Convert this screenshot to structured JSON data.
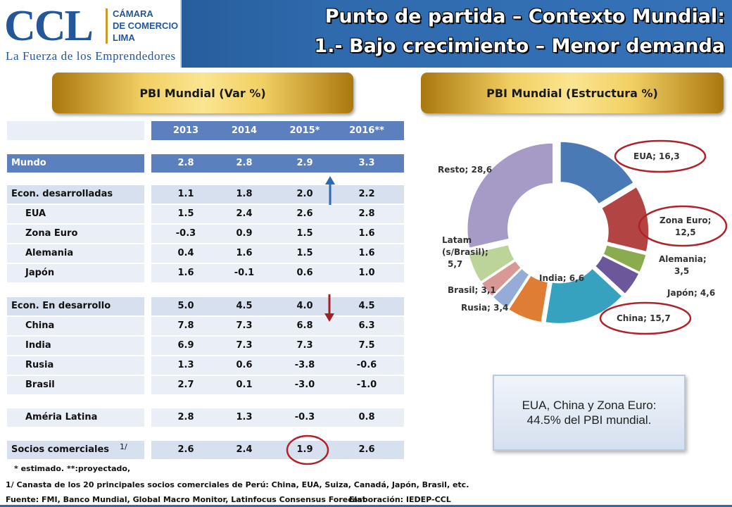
{
  "logo": {
    "ccl": "CCL",
    "camara_lines": [
      "CÁMARA",
      "DE COMERCIO",
      "LIMA"
    ],
    "tagline": "La Fuerza de los Emprendedores"
  },
  "title": {
    "line1": "Punto de partida – Contexto Mundial:",
    "line2": "1.- Bajo crecimiento – Menor demanda"
  },
  "sections": {
    "left": "PBI Mundial (Var %)",
    "right": "PBI Mundial (Estructura %)"
  },
  "table": {
    "columns": [
      "2013",
      "2014",
      "2015*",
      "2016**"
    ],
    "rows": [
      {
        "label": "Mundo",
        "values": [
          "2.8",
          "2.8",
          "2.9",
          "3.3"
        ],
        "style": "dark",
        "indent": false
      },
      {
        "label": "Econ. desarrolladas",
        "values": [
          "1.1",
          "1.8",
          "2.0",
          "2.2"
        ],
        "style": "mid",
        "indent": false
      },
      {
        "label": "EUA",
        "values": [
          "1.5",
          "2.4",
          "2.6",
          "2.8"
        ],
        "style": "plain",
        "indent": true
      },
      {
        "label": "Zona Euro",
        "values": [
          "-0.3",
          "0.9",
          "1.5",
          "1.6"
        ],
        "style": "plain",
        "indent": true
      },
      {
        "label": "Alemania",
        "values": [
          "0.4",
          "1.6",
          "1.5",
          "1.6"
        ],
        "style": "plain",
        "indent": true
      },
      {
        "label": "Japón",
        "values": [
          "1.6",
          "-0.1",
          "0.6",
          "1.0"
        ],
        "style": "plain",
        "indent": true
      },
      {
        "label": "Econ. En desarrollo",
        "values": [
          "5.0",
          "4.5",
          "4.0",
          "4.5"
        ],
        "style": "mid",
        "indent": false
      },
      {
        "label": "China",
        "values": [
          "7.8",
          "7.3",
          "6.8",
          "6.3"
        ],
        "style": "plain",
        "indent": true
      },
      {
        "label": "India",
        "values": [
          "6.9",
          "7.3",
          "7.3",
          "7.5"
        ],
        "style": "plain",
        "indent": true
      },
      {
        "label": "Rusia",
        "values": [
          "1.3",
          "0.6",
          "-3.8",
          "-0.6"
        ],
        "style": "plain",
        "indent": true
      },
      {
        "label": "Brasil",
        "values": [
          "2.7",
          "0.1",
          "-3.0",
          "-1.0"
        ],
        "style": "plain",
        "indent": true
      },
      {
        "label": "Améria Latina",
        "values": [
          "2.8",
          "1.3",
          "-0.3",
          "0.8"
        ],
        "style": "plain",
        "indent": true
      },
      {
        "label": "Socios comerciales",
        "values": [
          "2.6",
          "2.4",
          "1.9",
          "2.6"
        ],
        "style": "mid",
        "indent": false,
        "note": "1/"
      }
    ]
  },
  "footnotes": {
    "estimado": "* estimado.   **:proyectado,",
    "canasta": "1/ Canasta de los 20 principales socios comerciales de Perú: China, EUA, Suiza, Canadá, Japón, Brasil, etc.",
    "fuente": "Fuente: FMI, Banco Mundial, Global Macro Monitor, Latinfocus Consensus Forecast",
    "elaboracion": "Elaboración: IEDEP-CCL"
  },
  "summary": {
    "line1": "EUA, China y Zona Euro:",
    "line2": "44.5% del PBI mundial."
  },
  "colors": {
    "header": "#2f6aad",
    "gold": "#f1cf62",
    "table_dark": "#5b80bd",
    "highlight_circle": "#b0222a",
    "arrow_up": "#2a6ab8",
    "arrow_down": "#a32026"
  },
  "chart_data": {
    "type": "pie",
    "title": "PBI Mundial (Estructura %)",
    "slices": [
      {
        "label": "EUA; 16,3",
        "value": 16.3,
        "color": "#4a7ab5"
      },
      {
        "label": "Zona Euro; 12,5",
        "value": 12.5,
        "color": "#b24543"
      },
      {
        "label": "Alemania; 3,5",
        "value": 3.5,
        "color": "#8aac4e"
      },
      {
        "label": "Japón; 4,6",
        "value": 4.6,
        "color": "#6c579a"
      },
      {
        "label": "China; 15,7",
        "value": 15.7,
        "color": "#36a2c0"
      },
      {
        "label": "India; 6,6",
        "value": 6.6,
        "color": "#e07d34"
      },
      {
        "label": "Rusia; 3,4",
        "value": 3.4,
        "color": "#95acd8"
      },
      {
        "label": "Brasil; 3,1",
        "value": 3.1,
        "color": "#d79896"
      },
      {
        "label": "Latam (s/Brasil); 5,7",
        "value": 5.7,
        "color": "#bcd49a"
      },
      {
        "label": "Resto; 28,6",
        "value": 28.6,
        "color": "#a69ac6"
      }
    ]
  }
}
